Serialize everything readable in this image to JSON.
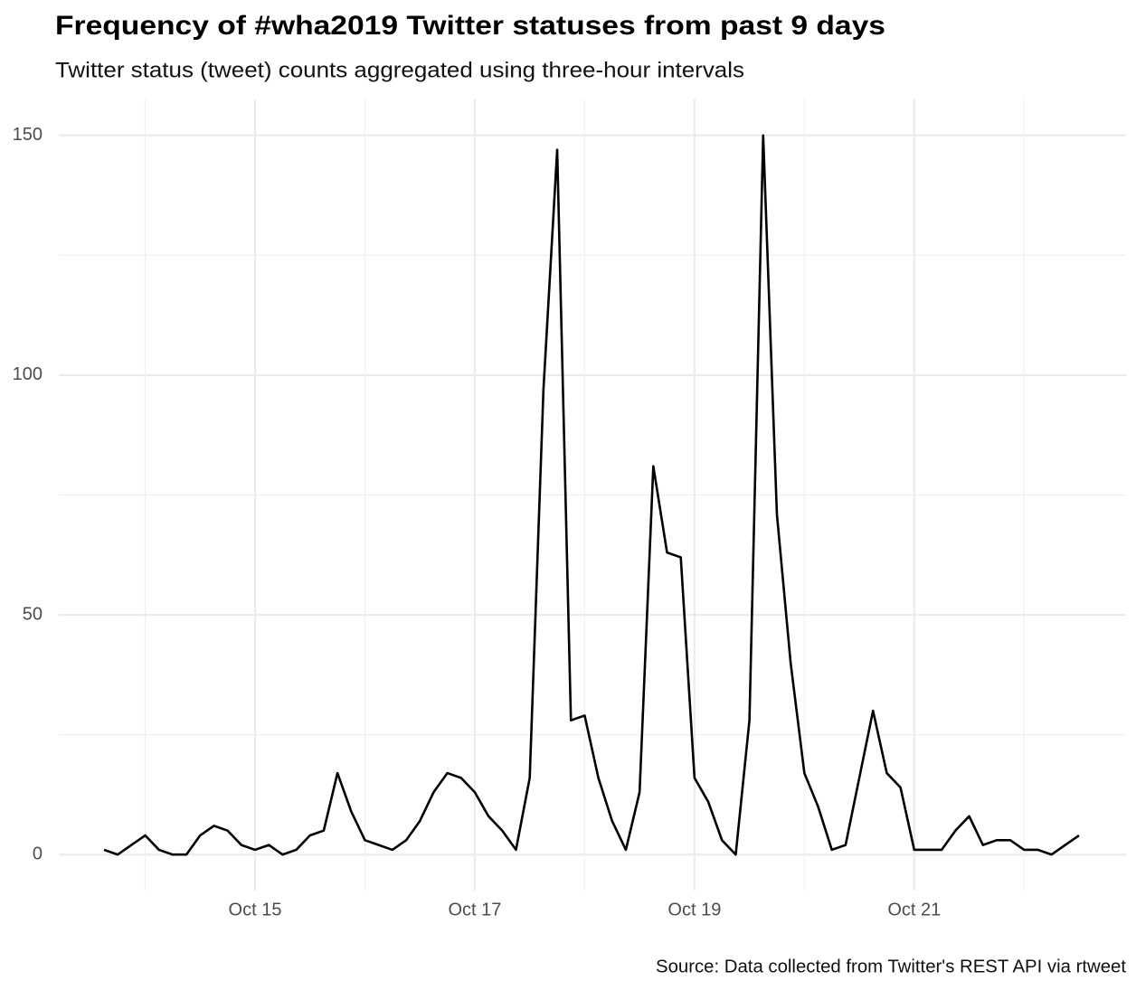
{
  "chart_data": {
    "type": "line",
    "title": "Frequency of #wha2019 Twitter statuses from past 9 days",
    "subtitle": "Twitter status (tweet) counts aggregated using three-hour intervals",
    "caption": "Source: Data collected from Twitter's REST API via rtweet",
    "categories": [
      null,
      null,
      null,
      null,
      null,
      null,
      null,
      null,
      null,
      null,
      null,
      "Oct 15",
      null,
      null,
      null,
      null,
      null,
      null,
      null,
      null,
      null,
      null,
      null,
      null,
      null,
      null,
      null,
      "Oct 17",
      null,
      null,
      null,
      null,
      null,
      null,
      null,
      null,
      null,
      null,
      null,
      null,
      null,
      null,
      null,
      "Oct 19",
      null,
      null,
      null,
      null,
      null,
      null,
      null,
      null,
      null,
      null,
      null,
      null,
      null,
      null,
      null,
      "Oct 21",
      null,
      null,
      null,
      null,
      null,
      null,
      null,
      null,
      null,
      null,
      null,
      null
    ],
    "values": [
      1,
      0,
      2,
      4,
      1,
      0,
      0,
      4,
      6,
      5,
      2,
      1,
      2,
      0,
      1,
      4,
      5,
      17,
      9,
      3,
      2,
      1,
      3,
      7,
      13,
      17,
      16,
      13,
      8,
      5,
      1,
      16,
      97,
      147,
      28,
      29,
      16,
      7,
      1,
      13,
      81,
      63,
      62,
      16,
      11,
      3,
      0,
      28,
      150,
      71,
      40,
      17,
      10,
      1,
      2,
      16,
      30,
      17,
      14,
      1,
      1,
      1,
      5,
      8,
      2,
      3,
      3,
      1,
      1,
      0,
      2,
      4
    ],
    "color": "#000000",
    "ylim": [
      -7.5,
      157.5
    ],
    "yticks": [
      0,
      50,
      100,
      150
    ],
    "grid": true
  }
}
